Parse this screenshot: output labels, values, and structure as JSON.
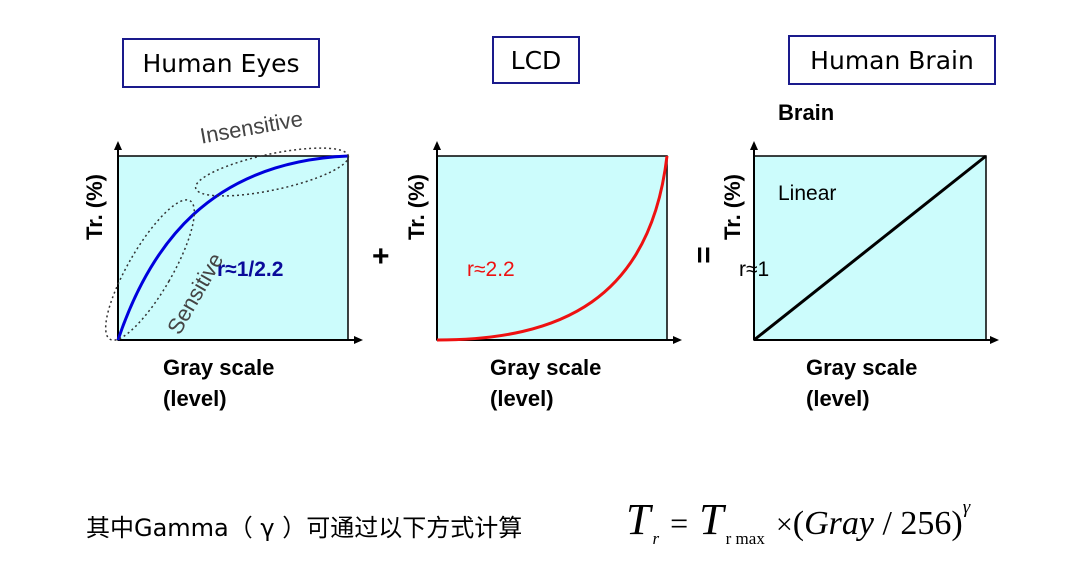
{
  "titles": {
    "human_eyes": "Human Eyes",
    "lcd": "LCD",
    "human_brain": "Human Brain",
    "brain_partial": "Brain"
  },
  "panels": [
    {
      "ylabel": "Tr. (%)",
      "xlabel_line1": "Gray scale",
      "xlabel_line2": "(level)",
      "curve_label": "r≈1/2.2",
      "curve_color": "#0000dd"
    },
    {
      "ylabel": "Tr. (%)",
      "xlabel_line1": "Gray scale",
      "xlabel_line2": "(level)",
      "curve_label": "r≈2.2",
      "curve_color": "#ee1111"
    },
    {
      "ylabel": "Tr. (%)",
      "xlabel_line1": "Gray scale",
      "xlabel_line2": "(level)",
      "curve_label": "r≈1",
      "curve_color": "#000000",
      "inner_label": "Linear"
    }
  ],
  "annotations": {
    "insensitive": "Insensitive",
    "sensitive": "Sensitive"
  },
  "operators": {
    "plus": "+",
    "equals": "="
  },
  "caption": "其中Gamma（ γ ）可通过以下方式计算",
  "formula": {
    "T": "T",
    "sub_r": "r",
    "equals": "=",
    "sub_rmax": "r max",
    "times": "×",
    "open": "(",
    "gray": "Gray",
    "slash": " / ",
    "n256": "256",
    "close": ")",
    "gamma": "γ"
  },
  "colors": {
    "plot_bg": "#ccfcfc",
    "title_border": "#1a1a8c"
  }
}
